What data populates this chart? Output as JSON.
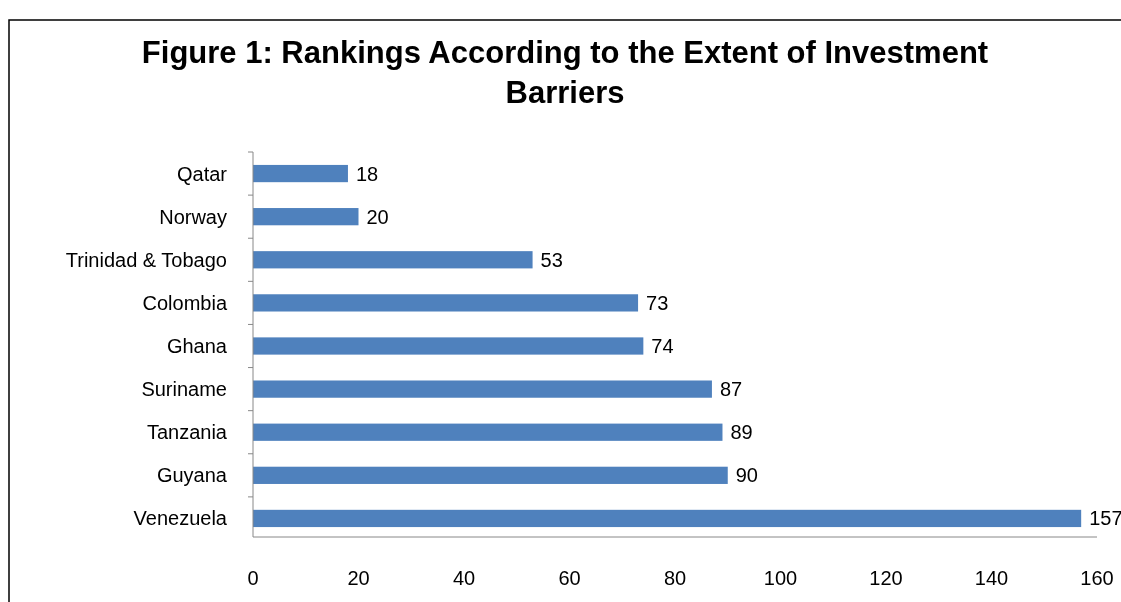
{
  "chart_data": {
    "type": "bar",
    "orientation": "horizontal",
    "title": "Figure 1: Rankings According to the Extent of Investment Barriers",
    "categories": [
      "Qatar",
      "Norway",
      "Trinidad & Tobago",
      "Colombia",
      "Ghana",
      "Suriname",
      "Tanzania",
      "Guyana",
      "Venezuela"
    ],
    "values": [
      18,
      20,
      53,
      73,
      74,
      87,
      89,
      90,
      157
    ],
    "color": "#4f81bd",
    "data_labels": true,
    "xlim": [
      0,
      160
    ],
    "xticks": [
      0,
      20,
      40,
      60,
      80,
      100,
      120,
      140,
      160
    ],
    "grid": false
  }
}
